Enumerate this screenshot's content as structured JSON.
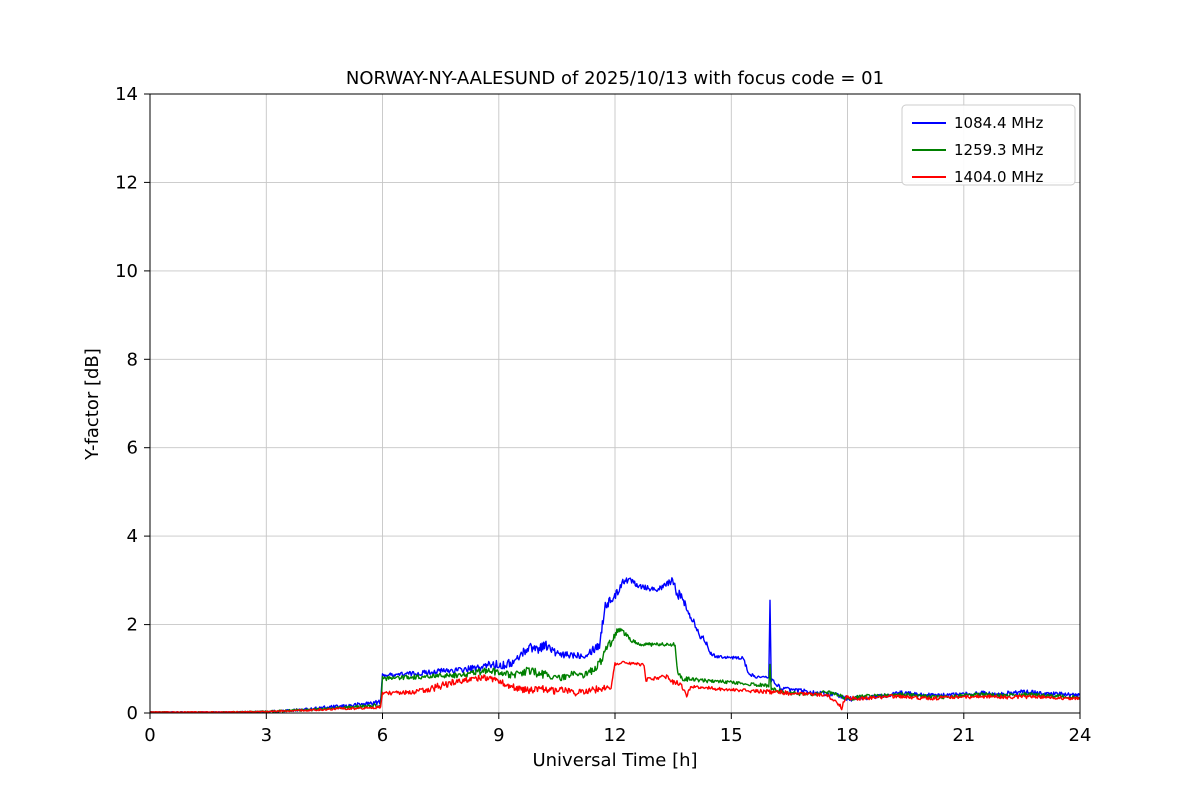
{
  "chart_data": {
    "type": "line",
    "title": "NORWAY-NY-AALESUND of 2025/10/13 with focus code = 01",
    "xlabel": "Universal Time [h]",
    "ylabel": "Y-factor [dB]",
    "xlim": [
      0,
      24
    ],
    "ylim": [
      0,
      14
    ],
    "xticks": [
      0,
      3,
      6,
      9,
      12,
      15,
      18,
      21,
      24
    ],
    "yticks": [
      0,
      2,
      4,
      6,
      8,
      10,
      12,
      14
    ],
    "grid": true,
    "grid_color": "#c6c6c6",
    "legend_position": "upper right",
    "series": [
      {
        "name": "1084.4 MHz",
        "color": "#0000ff",
        "points": [
          [
            0,
            0.02,
            0.01
          ],
          [
            1,
            0.02,
            0.01
          ],
          [
            2,
            0.02,
            0.01
          ],
          [
            3,
            0.03,
            0.02
          ],
          [
            3.5,
            0.05,
            0.03
          ],
          [
            4,
            0.08,
            0.03
          ],
          [
            4.5,
            0.12,
            0.04
          ],
          [
            5,
            0.15,
            0.04
          ],
          [
            5.5,
            0.2,
            0.05
          ],
          [
            5.95,
            0.25,
            0.05
          ],
          [
            6,
            0.85,
            0.04
          ],
          [
            6.5,
            0.88,
            0.05
          ],
          [
            7,
            0.9,
            0.06
          ],
          [
            7.5,
            0.95,
            0.06
          ],
          [
            8,
            0.97,
            0.07
          ],
          [
            8.5,
            1.02,
            0.08
          ],
          [
            8.8,
            1.1,
            0.1
          ],
          [
            9.1,
            1.08,
            0.09
          ],
          [
            9.4,
            1.15,
            0.1
          ],
          [
            9.6,
            1.35,
            0.09
          ],
          [
            9.8,
            1.5,
            0.1
          ],
          [
            10,
            1.45,
            0.12
          ],
          [
            10.2,
            1.55,
            0.1
          ],
          [
            10.4,
            1.4,
            0.1
          ],
          [
            10.6,
            1.3,
            0.08
          ],
          [
            10.9,
            1.32,
            0.08
          ],
          [
            11.2,
            1.3,
            0.07
          ],
          [
            11.45,
            1.45,
            0.1
          ],
          [
            11.6,
            1.55,
            0.12
          ],
          [
            11.75,
            2.45,
            0.12
          ],
          [
            11.9,
            2.55,
            0.1
          ],
          [
            12.05,
            2.7,
            0.1
          ],
          [
            12.2,
            3,
            0.08
          ],
          [
            12.45,
            3,
            0.07
          ],
          [
            12.6,
            2.9,
            0.08
          ],
          [
            12.8,
            2.85,
            0.08
          ],
          [
            13,
            2.8,
            0.06
          ],
          [
            13.2,
            2.82,
            0.06
          ],
          [
            13.45,
            3,
            0.1
          ],
          [
            13.6,
            2.75,
            0.12
          ],
          [
            13.75,
            2.55,
            0.15
          ],
          [
            13.9,
            2.3,
            0.1
          ],
          [
            14.05,
            2.05,
            0.08
          ],
          [
            14.2,
            1.75,
            0.08
          ],
          [
            14.35,
            1.6,
            0.06
          ],
          [
            14.5,
            1.3,
            0.04
          ],
          [
            15,
            1.25,
            0.03
          ],
          [
            15.3,
            1.25,
            0.04
          ],
          [
            15.45,
            0.9,
            0.05
          ],
          [
            15.6,
            0.82,
            0.03
          ],
          [
            15.97,
            0.8,
            0.03
          ],
          [
            16,
            2.55,
            0
          ],
          [
            16.03,
            0.75,
            0.05
          ],
          [
            16.3,
            0.55,
            0.05
          ],
          [
            16.8,
            0.5,
            0.05
          ],
          [
            17.2,
            0.45,
            0.05
          ],
          [
            17.6,
            0.42,
            0.06
          ],
          [
            18,
            0.32,
            0.06
          ],
          [
            18.5,
            0.35,
            0.05
          ],
          [
            19,
            0.4,
            0.05
          ],
          [
            19.4,
            0.45,
            0.05
          ],
          [
            19.8,
            0.42,
            0.04
          ],
          [
            20.3,
            0.4,
            0.04
          ],
          [
            21,
            0.42,
            0.05
          ],
          [
            21.5,
            0.45,
            0.05
          ],
          [
            22,
            0.43,
            0.05
          ],
          [
            22.5,
            0.47,
            0.06
          ],
          [
            23,
            0.45,
            0.05
          ],
          [
            23.5,
            0.42,
            0.05
          ],
          [
            24,
            0.4,
            0.04
          ]
        ]
      },
      {
        "name": "1259.3 MHz",
        "color": "#008000",
        "points": [
          [
            0,
            0.02,
            0.01
          ],
          [
            1,
            0.02,
            0.01
          ],
          [
            2,
            0.02,
            0.01
          ],
          [
            3,
            0.03,
            0.02
          ],
          [
            4,
            0.07,
            0.03
          ],
          [
            5,
            0.12,
            0.03
          ],
          [
            5.95,
            0.18,
            0.04
          ],
          [
            6,
            0.78,
            0.05
          ],
          [
            6.5,
            0.8,
            0.05
          ],
          [
            7,
            0.82,
            0.05
          ],
          [
            7.5,
            0.85,
            0.05
          ],
          [
            8,
            0.85,
            0.06
          ],
          [
            8.5,
            0.93,
            0.07
          ],
          [
            8.8,
            0.95,
            0.08
          ],
          [
            9.1,
            0.9,
            0.07
          ],
          [
            9.4,
            0.85,
            0.08
          ],
          [
            9.7,
            0.95,
            0.1
          ],
          [
            10,
            0.9,
            0.1
          ],
          [
            10.3,
            0.85,
            0.08
          ],
          [
            10.6,
            0.8,
            0.07
          ],
          [
            10.9,
            0.88,
            0.07
          ],
          [
            11.2,
            0.85,
            0.06
          ],
          [
            11.45,
            1,
            0.1
          ],
          [
            11.6,
            1.1,
            0.1
          ],
          [
            11.75,
            1.45,
            0.1
          ],
          [
            11.9,
            1.6,
            0.08
          ],
          [
            12.05,
            1.85,
            0.06
          ],
          [
            12.15,
            1.9,
            0.05
          ],
          [
            12.3,
            1.75,
            0.06
          ],
          [
            12.5,
            1.6,
            0.05
          ],
          [
            12.7,
            1.55,
            0.04
          ],
          [
            13,
            1.55,
            0.04
          ],
          [
            13.3,
            1.55,
            0.04
          ],
          [
            13.55,
            1.55,
            0.04
          ],
          [
            13.62,
            0.9,
            0.06
          ],
          [
            13.75,
            0.78,
            0.05
          ],
          [
            14,
            0.75,
            0.05
          ],
          [
            14.5,
            0.72,
            0.04
          ],
          [
            15,
            0.7,
            0.04
          ],
          [
            15.5,
            0.65,
            0.04
          ],
          [
            15.97,
            0.62,
            0.04
          ],
          [
            16,
            1.1,
            0
          ],
          [
            16.03,
            0.55,
            0.05
          ],
          [
            16.5,
            0.45,
            0.04
          ],
          [
            17,
            0.42,
            0.04
          ],
          [
            17.5,
            0.48,
            0.05
          ],
          [
            18,
            0.32,
            0.05
          ],
          [
            18.5,
            0.38,
            0.05
          ],
          [
            19,
            0.4,
            0.04
          ],
          [
            19.5,
            0.42,
            0.04
          ],
          [
            20,
            0.38,
            0.04
          ],
          [
            20.5,
            0.36,
            0.04
          ],
          [
            21,
            0.4,
            0.04
          ],
          [
            21.5,
            0.42,
            0.05
          ],
          [
            22,
            0.4,
            0.04
          ],
          [
            22.5,
            0.42,
            0.05
          ],
          [
            23,
            0.4,
            0.04
          ],
          [
            23.5,
            0.38,
            0.04
          ],
          [
            24,
            0.35,
            0.04
          ]
        ]
      },
      {
        "name": "1404.0 MHz",
        "color": "#ff0000",
        "points": [
          [
            0,
            0.02,
            0.01
          ],
          [
            1,
            0.02,
            0.01
          ],
          [
            2,
            0.02,
            0.01
          ],
          [
            3,
            0.03,
            0.015
          ],
          [
            4,
            0.06,
            0.02
          ],
          [
            5,
            0.1,
            0.03
          ],
          [
            5.95,
            0.13,
            0.03
          ],
          [
            6,
            0.45,
            0.04
          ],
          [
            6.5,
            0.45,
            0.05
          ],
          [
            7,
            0.5,
            0.06
          ],
          [
            7.3,
            0.55,
            0.08
          ],
          [
            7.6,
            0.65,
            0.08
          ],
          [
            8,
            0.72,
            0.07
          ],
          [
            8.3,
            0.78,
            0.07
          ],
          [
            8.6,
            0.8,
            0.07
          ],
          [
            8.9,
            0.75,
            0.06
          ],
          [
            9.2,
            0.65,
            0.07
          ],
          [
            9.5,
            0.55,
            0.08
          ],
          [
            9.8,
            0.5,
            0.08
          ],
          [
            10.1,
            0.55,
            0.08
          ],
          [
            10.4,
            0.5,
            0.08
          ],
          [
            10.7,
            0.52,
            0.07
          ],
          [
            11,
            0.45,
            0.07
          ],
          [
            11.3,
            0.5,
            0.08
          ],
          [
            11.6,
            0.55,
            0.08
          ],
          [
            11.9,
            0.6,
            0.08
          ],
          [
            12,
            1.1,
            0.04
          ],
          [
            12.2,
            1.15,
            0.03
          ],
          [
            12.4,
            1.12,
            0.03
          ],
          [
            12.6,
            1.1,
            0.04
          ],
          [
            12.75,
            1.08,
            0.03
          ],
          [
            12.8,
            0.75,
            0.04
          ],
          [
            13.1,
            0.78,
            0.05
          ],
          [
            13.35,
            0.85,
            0.08
          ],
          [
            13.5,
            0.7,
            0.06
          ],
          [
            13.7,
            0.65,
            0.05
          ],
          [
            13.85,
            0.4,
            0.05
          ],
          [
            13.95,
            0.6,
            0.04
          ],
          [
            14.2,
            0.58,
            0.04
          ],
          [
            14.6,
            0.55,
            0.04
          ],
          [
            15,
            0.52,
            0.04
          ],
          [
            15.5,
            0.5,
            0.04
          ],
          [
            16,
            0.48,
            0.05
          ],
          [
            16.5,
            0.45,
            0.05
          ],
          [
            17,
            0.42,
            0.04
          ],
          [
            17.5,
            0.4,
            0.04
          ],
          [
            17.85,
            0.12,
            0.05
          ],
          [
            17.95,
            0.35,
            0.05
          ],
          [
            18.3,
            0.32,
            0.04
          ],
          [
            18.7,
            0.35,
            0.04
          ],
          [
            19.2,
            0.38,
            0.04
          ],
          [
            19.7,
            0.35,
            0.04
          ],
          [
            20.2,
            0.33,
            0.04
          ],
          [
            20.7,
            0.35,
            0.04
          ],
          [
            21.2,
            0.36,
            0.04
          ],
          [
            21.7,
            0.38,
            0.04
          ],
          [
            22.2,
            0.35,
            0.04
          ],
          [
            22.7,
            0.37,
            0.04
          ],
          [
            23.2,
            0.35,
            0.04
          ],
          [
            23.6,
            0.34,
            0.04
          ],
          [
            24,
            0.33,
            0.03
          ]
        ]
      }
    ]
  }
}
